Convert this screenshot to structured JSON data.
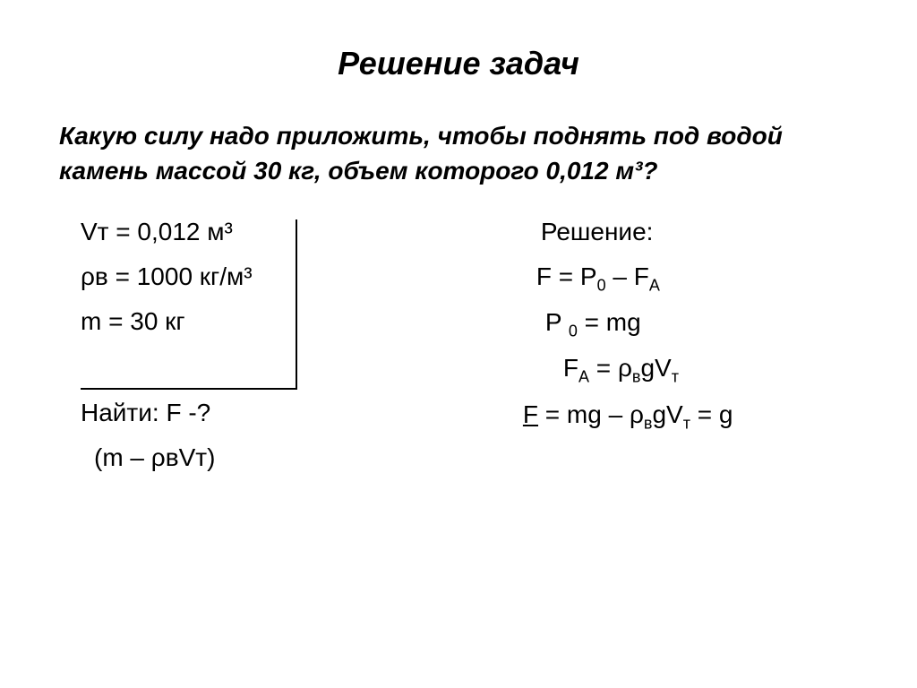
{
  "title": "Решение задач",
  "problem": "Какую силу надо приложить, чтобы поднять под водой камень массой 30 кг, объем которого 0,012 м³?",
  "given": {
    "volume": {
      "label": "Vт",
      "value": "0,012 м³"
    },
    "density": {
      "label": "ρв",
      "value": "1000 кг/м³"
    },
    "mass": {
      "label": "m",
      "value": "30 кг"
    }
  },
  "find": {
    "label": "Найти: F -?",
    "continuation": "(m – ρвVт)"
  },
  "solution": {
    "header": "Решение:",
    "line1_left": "F = P",
    "line1_sub1": "0",
    "line1_mid": " – F",
    "line1_sub2": "А",
    "line2_left": "P ",
    "line2_sub": "0",
    "line2_right": " = mg",
    "line3_left": "F",
    "line3_sub1": "А",
    "line3_mid": " = ρ",
    "line3_sub2": "в",
    "line3_mid2": "gV",
    "line3_sub3": "т",
    "line4_prefix": "F",
    "line4_mid": " = mg – ρ",
    "line4_sub1": "в",
    "line4_mid2": "gV",
    "line4_sub2": "т",
    "line4_mid3": " = ",
    "line4_end": "g"
  },
  "colors": {
    "background": "#ffffff",
    "text": "#000000"
  },
  "fonts": {
    "title_size": 36,
    "problem_size": 28,
    "body_size": 28,
    "sub_size": 18
  }
}
